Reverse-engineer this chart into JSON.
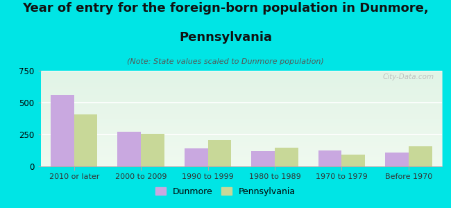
{
  "title_line1": "Year of entry for the foreign-born population in Dunmore,",
  "title_line2": "Pennsylvania",
  "subtitle": "(Note: State values scaled to Dunmore population)",
  "categories": [
    "2010 or later",
    "2000 to 2009",
    "1990 to 1999",
    "1980 to 1989",
    "1970 to 1979",
    "Before 1970"
  ],
  "dunmore_values": [
    560,
    270,
    140,
    120,
    125,
    110
  ],
  "pennsylvania_values": [
    410,
    255,
    205,
    145,
    95,
    155
  ],
  "dunmore_color": "#c9a8e0",
  "pennsylvania_color": "#c8d898",
  "background_color": "#00e5e5",
  "plot_bg_top": "#f0faf0",
  "plot_bg_bottom": "#d8f0e0",
  "ylim": [
    0,
    750
  ],
  "yticks": [
    0,
    250,
    500,
    750
  ],
  "bar_width": 0.35,
  "watermark": "City-Data.com",
  "legend_dunmore": "Dunmore",
  "legend_pennsylvania": "Pennsylvania",
  "title_fontsize": 13,
  "subtitle_fontsize": 8,
  "tick_fontsize": 8,
  "ytick_fontsize": 8.5,
  "legend_fontsize": 9
}
